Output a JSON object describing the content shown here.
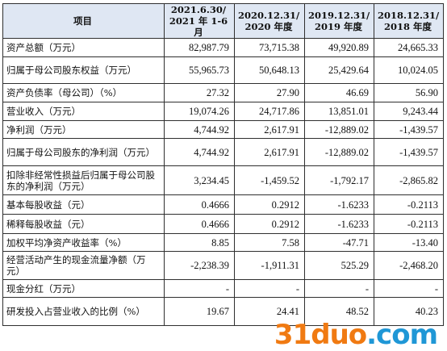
{
  "table": {
    "headers": [
      [
        "项目"
      ],
      [
        "2021.6.30/",
        "2021 年 1-6 月"
      ],
      [
        "2020.12.31/",
        "2020 年度"
      ],
      [
        "2019.12.31/",
        "2019 年度"
      ],
      [
        "2018.12.31/",
        "2018 年度"
      ]
    ],
    "rows": [
      {
        "label": "资产总额（万元）",
        "values": [
          "82,987.79",
          "73,715.38",
          "49,920.89",
          "24,665.33"
        ]
      },
      {
        "label": "归属于母公司股东权益（万元）",
        "values": [
          "55,965.73",
          "50,648.13",
          "25,429.64",
          "10,024.05"
        ]
      },
      {
        "label": "资产负债率（母公司）（%）",
        "values": [
          "27.32",
          "27.90",
          "46.69",
          "56.90"
        ]
      },
      {
        "label": "营业收入（万元）",
        "values": [
          "19,074.26",
          "24,717.86",
          "13,851.01",
          "9,243.44"
        ]
      },
      {
        "label": "净利润（万元）",
        "values": [
          "4,744.92",
          "2,617.91",
          "-12,889.02",
          "-1,439.57"
        ]
      },
      {
        "label": "归属于母公司股东的净利润（万元）",
        "values": [
          "4,744.92",
          "2,617.91",
          "-12,889.02",
          "-1,439.57"
        ]
      },
      {
        "label": "扣除非经常性损益后归属于母公司股东的净利润（万元）",
        "values": [
          "3,234.45",
          "-1,459.52",
          "-1,792.17",
          "-2,865.82"
        ]
      },
      {
        "label": "基本每股收益（元）",
        "values": [
          "0.4666",
          "0.2912",
          "-1.6233",
          "-0.2113"
        ]
      },
      {
        "label": "稀释每股收益（元）",
        "values": [
          "0.4666",
          "0.2912",
          "-1.6233",
          "-0.2113"
        ]
      },
      {
        "label": "加权平均净资产收益率（%）",
        "values": [
          "8.85",
          "7.58",
          "-47.71",
          "-13.40"
        ]
      },
      {
        "label": "经营活动产生的现金流量净额（万元）",
        "values": [
          "-2,238.39",
          "-1,911.31",
          "525.29",
          "-2,468.20"
        ]
      },
      {
        "label": "现金分红（万元）",
        "values": [
          "-",
          "-",
          "-",
          "-"
        ]
      },
      {
        "label": "研发投入占营业收入的比例（%）",
        "values": [
          "19.67",
          "24.41",
          "48.52",
          "40.23"
        ]
      }
    ]
  },
  "watermark": {
    "part1": "31",
    "part2": "duo",
    "part3": ".com"
  }
}
